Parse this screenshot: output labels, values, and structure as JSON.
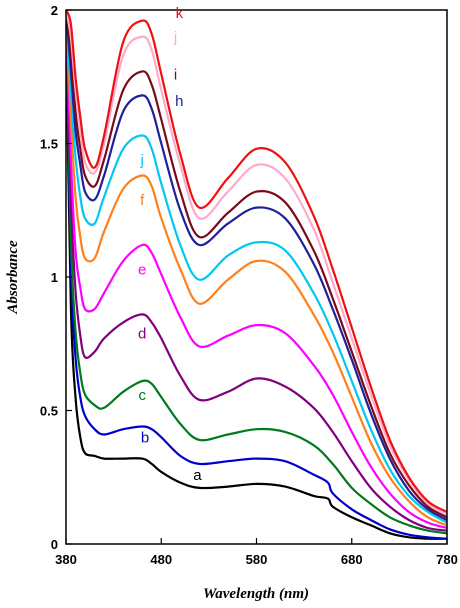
{
  "chart_data": {
    "type": "line",
    "title": "",
    "xlabel": "Wavelength (nm)",
    "ylabel": "Absorbance",
    "xlim": [
      380,
      780
    ],
    "ylim": [
      0,
      2
    ],
    "xticks": [
      380,
      480,
      580,
      680,
      780
    ],
    "xtick_labels": [
      "380",
      "480",
      "580",
      "680",
      "780"
    ],
    "yticks": [
      0,
      0.5,
      1,
      1.5,
      2
    ],
    "ytick_labels": [
      "0",
      "0.5",
      "1",
      "1.5",
      "2"
    ],
    "grid": false,
    "series": [
      {
        "name": "a",
        "color": "#000000",
        "x": [
          380,
          385,
          390,
          395,
          400,
          410,
          420,
          440,
          460,
          470,
          480,
          500,
          520,
          550,
          580,
          610,
          640,
          655,
          660,
          680,
          700,
          720,
          740,
          760,
          780
        ],
        "y": [
          1.95,
          0.9,
          0.55,
          0.4,
          0.34,
          0.33,
          0.32,
          0.32,
          0.32,
          0.3,
          0.27,
          0.23,
          0.21,
          0.215,
          0.225,
          0.215,
          0.18,
          0.17,
          0.14,
          0.1,
          0.07,
          0.04,
          0.025,
          0.02,
          0.02
        ]
      },
      {
        "name": "b",
        "color": "#0000cc",
        "x": [
          380,
          385,
          390,
          395,
          400,
          410,
          420,
          440,
          460,
          470,
          480,
          500,
          520,
          550,
          580,
          610,
          640,
          655,
          660,
          680,
          700,
          720,
          740,
          760,
          780
        ],
        "y": [
          2.0,
          1.05,
          0.7,
          0.55,
          0.48,
          0.43,
          0.41,
          0.43,
          0.44,
          0.43,
          0.4,
          0.33,
          0.3,
          0.31,
          0.32,
          0.31,
          0.26,
          0.23,
          0.19,
          0.13,
          0.09,
          0.055,
          0.035,
          0.025,
          0.02
        ]
      },
      {
        "name": "c",
        "color": "#007a1c",
        "x": [
          380,
          385,
          390,
          395,
          400,
          410,
          420,
          440,
          460,
          470,
          480,
          500,
          520,
          550,
          580,
          610,
          640,
          660,
          680,
          700,
          720,
          740,
          760,
          780
        ],
        "y": [
          2.0,
          1.15,
          0.8,
          0.64,
          0.56,
          0.52,
          0.51,
          0.57,
          0.61,
          0.6,
          0.55,
          0.45,
          0.39,
          0.41,
          0.43,
          0.42,
          0.37,
          0.3,
          0.21,
          0.15,
          0.1,
          0.07,
          0.05,
          0.04
        ]
      },
      {
        "name": "d",
        "color": "#800080",
        "x": [
          380,
          385,
          390,
          395,
          400,
          410,
          420,
          440,
          460,
          470,
          480,
          500,
          520,
          550,
          580,
          610,
          640,
          660,
          680,
          700,
          720,
          740,
          760,
          780
        ],
        "y": [
          2.0,
          1.3,
          0.95,
          0.78,
          0.7,
          0.72,
          0.77,
          0.83,
          0.86,
          0.83,
          0.77,
          0.63,
          0.54,
          0.57,
          0.62,
          0.59,
          0.51,
          0.42,
          0.31,
          0.21,
          0.14,
          0.09,
          0.06,
          0.05
        ]
      },
      {
        "name": "e",
        "color": "#ff00ff",
        "x": [
          380,
          385,
          390,
          395,
          400,
          410,
          420,
          440,
          460,
          470,
          480,
          500,
          520,
          550,
          580,
          610,
          640,
          660,
          680,
          700,
          720,
          740,
          760,
          780
        ],
        "y": [
          2.0,
          1.45,
          1.1,
          0.96,
          0.88,
          0.88,
          0.94,
          1.06,
          1.12,
          1.09,
          1.01,
          0.85,
          0.74,
          0.78,
          0.82,
          0.79,
          0.67,
          0.56,
          0.42,
          0.29,
          0.19,
          0.12,
          0.08,
          0.06
        ]
      },
      {
        "name": "f",
        "color": "#ff7f1a",
        "x": [
          380,
          385,
          390,
          395,
          400,
          410,
          420,
          440,
          460,
          470,
          480,
          500,
          520,
          550,
          580,
          610,
          640,
          660,
          680,
          700,
          720,
          740,
          760,
          780
        ],
        "y": [
          2.0,
          1.6,
          1.3,
          1.15,
          1.07,
          1.07,
          1.17,
          1.33,
          1.38,
          1.34,
          1.22,
          1.03,
          0.9,
          0.99,
          1.06,
          1.02,
          0.86,
          0.72,
          0.55,
          0.38,
          0.25,
          0.16,
          0.1,
          0.07
        ]
      },
      {
        "name": "j",
        "color": "#00c8f0",
        "x": [
          380,
          385,
          390,
          395,
          400,
          410,
          420,
          440,
          460,
          470,
          480,
          500,
          520,
          550,
          580,
          610,
          640,
          660,
          680,
          700,
          720,
          740,
          760,
          780
        ],
        "y": [
          2.0,
          1.7,
          1.45,
          1.3,
          1.22,
          1.2,
          1.3,
          1.48,
          1.53,
          1.48,
          1.35,
          1.12,
          0.99,
          1.08,
          1.13,
          1.1,
          0.94,
          0.79,
          0.61,
          0.43,
          0.28,
          0.18,
          0.12,
          0.08
        ]
      },
      {
        "name": "h",
        "color": "#1f1f99",
        "x": [
          380,
          385,
          390,
          395,
          400,
          410,
          420,
          440,
          460,
          470,
          480,
          500,
          520,
          550,
          580,
          610,
          640,
          660,
          680,
          700,
          720,
          740,
          760,
          780
        ],
        "y": [
          2.0,
          1.78,
          1.55,
          1.42,
          1.32,
          1.29,
          1.38,
          1.62,
          1.68,
          1.63,
          1.5,
          1.25,
          1.12,
          1.2,
          1.26,
          1.22,
          1.05,
          0.88,
          0.69,
          0.49,
          0.32,
          0.2,
          0.13,
          0.09
        ]
      },
      {
        "name": "i",
        "color": "#7a0a1a",
        "x": [
          380,
          385,
          390,
          395,
          400,
          410,
          420,
          440,
          460,
          470,
          480,
          500,
          520,
          550,
          580,
          610,
          640,
          660,
          680,
          700,
          720,
          740,
          760,
          780
        ],
        "y": [
          2.0,
          1.85,
          1.62,
          1.48,
          1.38,
          1.34,
          1.44,
          1.7,
          1.77,
          1.72,
          1.59,
          1.32,
          1.15,
          1.24,
          1.32,
          1.28,
          1.1,
          0.92,
          0.72,
          0.52,
          0.34,
          0.22,
          0.14,
          0.1
        ]
      },
      {
        "name": "j",
        "color": "#ffaacc",
        "x": [
          380,
          385,
          390,
          395,
          400,
          410,
          420,
          440,
          460,
          470,
          480,
          500,
          520,
          550,
          580,
          610,
          640,
          660,
          680,
          700,
          720,
          740,
          760,
          780
        ],
        "y": [
          2.0,
          1.9,
          1.7,
          1.55,
          1.43,
          1.39,
          1.5,
          1.83,
          1.9,
          1.85,
          1.7,
          1.42,
          1.22,
          1.32,
          1.42,
          1.37,
          1.18,
          0.98,
          0.77,
          0.56,
          0.37,
          0.24,
          0.15,
          0.11
        ]
      },
      {
        "name": "k",
        "color": "#ee1111",
        "x": [
          380,
          385,
          390,
          395,
          400,
          410,
          420,
          440,
          460,
          470,
          480,
          500,
          520,
          550,
          580,
          610,
          640,
          660,
          680,
          700,
          720,
          740,
          760,
          780
        ],
        "y": [
          2.0,
          1.95,
          1.75,
          1.6,
          1.48,
          1.41,
          1.53,
          1.88,
          1.96,
          1.91,
          1.76,
          1.46,
          1.26,
          1.37,
          1.48,
          1.43,
          1.23,
          1.03,
          0.81,
          0.59,
          0.39,
          0.25,
          0.16,
          0.12
        ]
      }
    ]
  },
  "curve_labels": [
    {
      "text": "a",
      "color": "#000000",
      "x": 518,
      "y": 0.24
    },
    {
      "text": "b",
      "color": "#0000cc",
      "x": 463,
      "y": 0.38
    },
    {
      "text": "c",
      "color": "#007a1c",
      "x": 460,
      "y": 0.54
    },
    {
      "text": "d",
      "color": "#800080",
      "x": 460,
      "y": 0.77
    },
    {
      "text": "e",
      "color": "#ff00ff",
      "x": 460,
      "y": 1.01
    },
    {
      "text": "f",
      "color": "#ff7f1a",
      "x": 460,
      "y": 1.27
    },
    {
      "text": "j",
      "color": "#00c8f0",
      "x": 460,
      "y": 1.42
    },
    {
      "text": "h",
      "color": "#1f1f99",
      "x": 499,
      "y": 1.64
    },
    {
      "text": "i",
      "color": "#7a0a1a",
      "x": 495,
      "y": 1.74
    },
    {
      "text": "j",
      "color": "#ffaacc",
      "x": 495,
      "y": 1.88
    },
    {
      "text": "k",
      "color": "#ee1111",
      "x": 499,
      "y": 1.97
    }
  ]
}
